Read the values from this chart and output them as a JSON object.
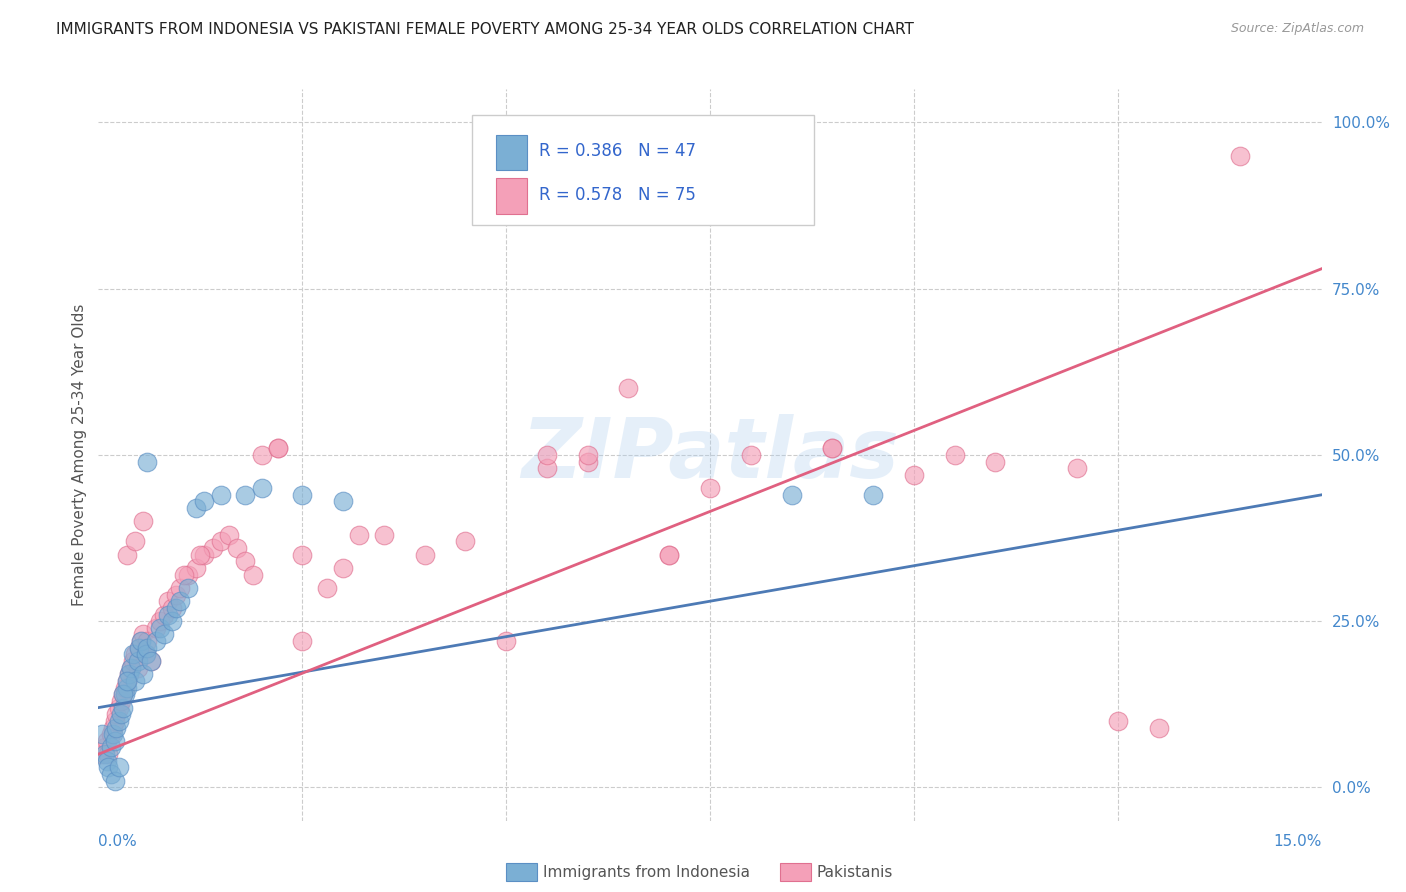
{
  "title": "IMMIGRANTS FROM INDONESIA VS PAKISTANI FEMALE POVERTY AMONG 25-34 YEAR OLDS CORRELATION CHART",
  "source": "Source: ZipAtlas.com",
  "ylabel": "Female Poverty Among 25-34 Year Olds",
  "yticks": [
    "0.0%",
    "25.0%",
    "50.0%",
    "75.0%",
    "100.0%"
  ],
  "ytick_vals": [
    0,
    25,
    50,
    75,
    100
  ],
  "xmin": 0,
  "xmax": 15,
  "ymin": -5,
  "ymax": 105,
  "legend1_label": "R = 0.386   N = 47",
  "legend2_label": "R = 0.578   N = 75",
  "blue_color": "#7bafd4",
  "blue_edge_color": "#5b8fc4",
  "pink_color": "#f4a0b8",
  "pink_edge_color": "#e07090",
  "blue_line_color": "#4d7ab5",
  "pink_line_color": "#e06080",
  "watermark": "ZIPatlas",
  "blue_line_x": [
    0,
    15
  ],
  "blue_line_y": [
    12,
    44
  ],
  "pink_line_x": [
    0,
    15
  ],
  "pink_line_y": [
    5,
    78
  ],
  "blue_scatter_x": [
    0.05,
    0.08,
    0.1,
    0.12,
    0.15,
    0.18,
    0.2,
    0.22,
    0.25,
    0.28,
    0.3,
    0.32,
    0.35,
    0.38,
    0.4,
    0.42,
    0.45,
    0.48,
    0.5,
    0.52,
    0.55,
    0.58,
    0.6,
    0.65,
    0.7,
    0.75,
    0.8,
    0.85,
    0.9,
    0.95,
    1.0,
    1.1,
    1.2,
    1.3,
    1.5,
    1.8,
    2.0,
    2.5,
    3.0,
    0.15,
    0.2,
    0.25,
    8.5,
    9.5,
    0.3,
    0.35,
    0.6
  ],
  "blue_scatter_y": [
    8,
    5,
    4,
    3,
    6,
    8,
    7,
    9,
    10,
    11,
    12,
    14,
    15,
    17,
    18,
    20,
    16,
    19,
    21,
    22,
    17,
    20,
    21,
    19,
    22,
    24,
    23,
    26,
    25,
    27,
    28,
    30,
    42,
    43,
    44,
    44,
    45,
    44,
    43,
    2,
    1,
    3,
    44,
    44,
    14,
    16,
    49
  ],
  "pink_scatter_x": [
    0.05,
    0.08,
    0.1,
    0.12,
    0.15,
    0.18,
    0.2,
    0.22,
    0.25,
    0.28,
    0.3,
    0.32,
    0.35,
    0.38,
    0.4,
    0.42,
    0.45,
    0.48,
    0.5,
    0.52,
    0.55,
    0.58,
    0.6,
    0.65,
    0.7,
    0.75,
    0.8,
    0.85,
    0.9,
    0.95,
    1.0,
    1.1,
    1.2,
    1.3,
    1.4,
    1.5,
    1.6,
    1.7,
    1.8,
    1.9,
    2.0,
    2.2,
    2.5,
    2.8,
    3.0,
    3.5,
    4.0,
    4.5,
    5.0,
    5.5,
    6.0,
    6.5,
    7.0,
    7.5,
    8.0,
    9.0,
    10.0,
    11.0,
    12.0,
    13.0,
    14.0,
    0.35,
    0.45,
    0.55,
    1.05,
    1.25,
    2.2,
    3.2,
    5.5,
    6.0,
    7.0,
    9.0,
    10.5,
    12.5,
    2.5
  ],
  "pink_scatter_y": [
    5,
    6,
    7,
    5,
    8,
    9,
    10,
    11,
    12,
    13,
    14,
    15,
    16,
    17,
    18,
    19,
    20,
    18,
    21,
    22,
    23,
    20,
    22,
    19,
    24,
    25,
    26,
    28,
    27,
    29,
    30,
    32,
    33,
    35,
    36,
    37,
    38,
    36,
    34,
    32,
    50,
    51,
    35,
    30,
    33,
    38,
    35,
    37,
    22,
    48,
    49,
    60,
    35,
    45,
    50,
    51,
    47,
    49,
    48,
    9,
    95,
    35,
    37,
    40,
    32,
    35,
    51,
    38,
    50,
    50,
    35,
    51,
    50,
    10,
    22
  ],
  "xtick_positions": [
    0,
    2.5,
    5.0,
    7.5,
    10.0,
    12.5,
    15.0
  ],
  "vgrid_positions": [
    2.5,
    5.0,
    7.5,
    10.0,
    12.5
  ]
}
